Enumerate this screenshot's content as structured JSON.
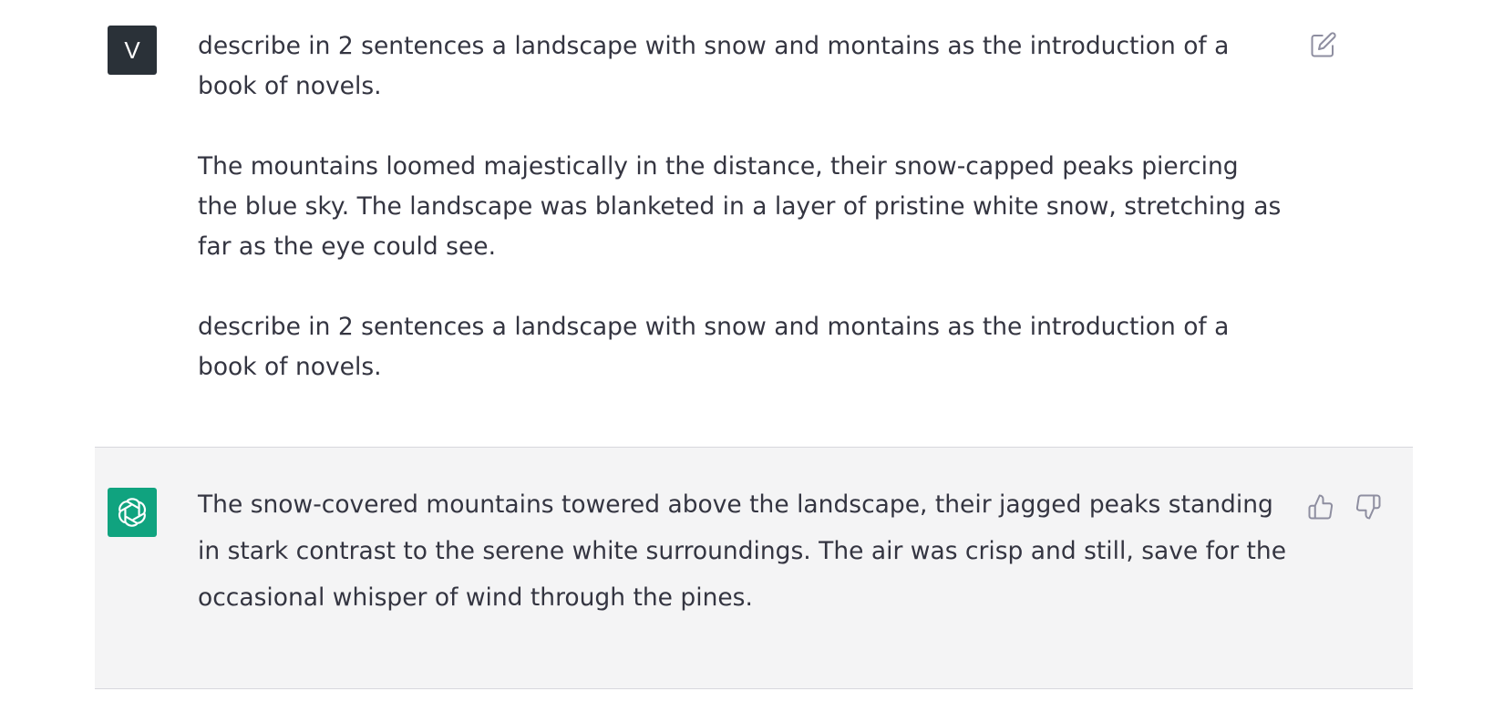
{
  "user_message": {
    "avatar_initial": "V",
    "paragraphs": [
      "describe in 2 sentences a landscape with snow and montains as the introduction of a book of novels.",
      "The mountains loomed majestically in the distance, their snow-capped peaks piercing the blue sky. The landscape was blanketed in a layer of pristine white snow, stretching as far as the eye could see.",
      "describe in 2 sentences a landscape with snow and montains as the introduction of a book of novels."
    ],
    "edit_icon": "pencil-square-icon"
  },
  "assistant_message": {
    "avatar_icon": "openai-logo-icon",
    "text": "The snow-covered mountains towered above the landscape, their jagged peaks standing in stark contrast to the serene white surroundings. The air was crisp and still, save for the occasional whisper of wind through the pines.",
    "thumbs_up_icon": "thumbs-up-icon",
    "thumbs_down_icon": "thumbs-down-icon"
  },
  "colors": {
    "user_avatar_bg": "#2a3138",
    "assistant_avatar_bg": "#10a37f",
    "assistant_row_bg": "#f4f4f5",
    "text": "#343541",
    "icon": "#8e8ea0"
  }
}
